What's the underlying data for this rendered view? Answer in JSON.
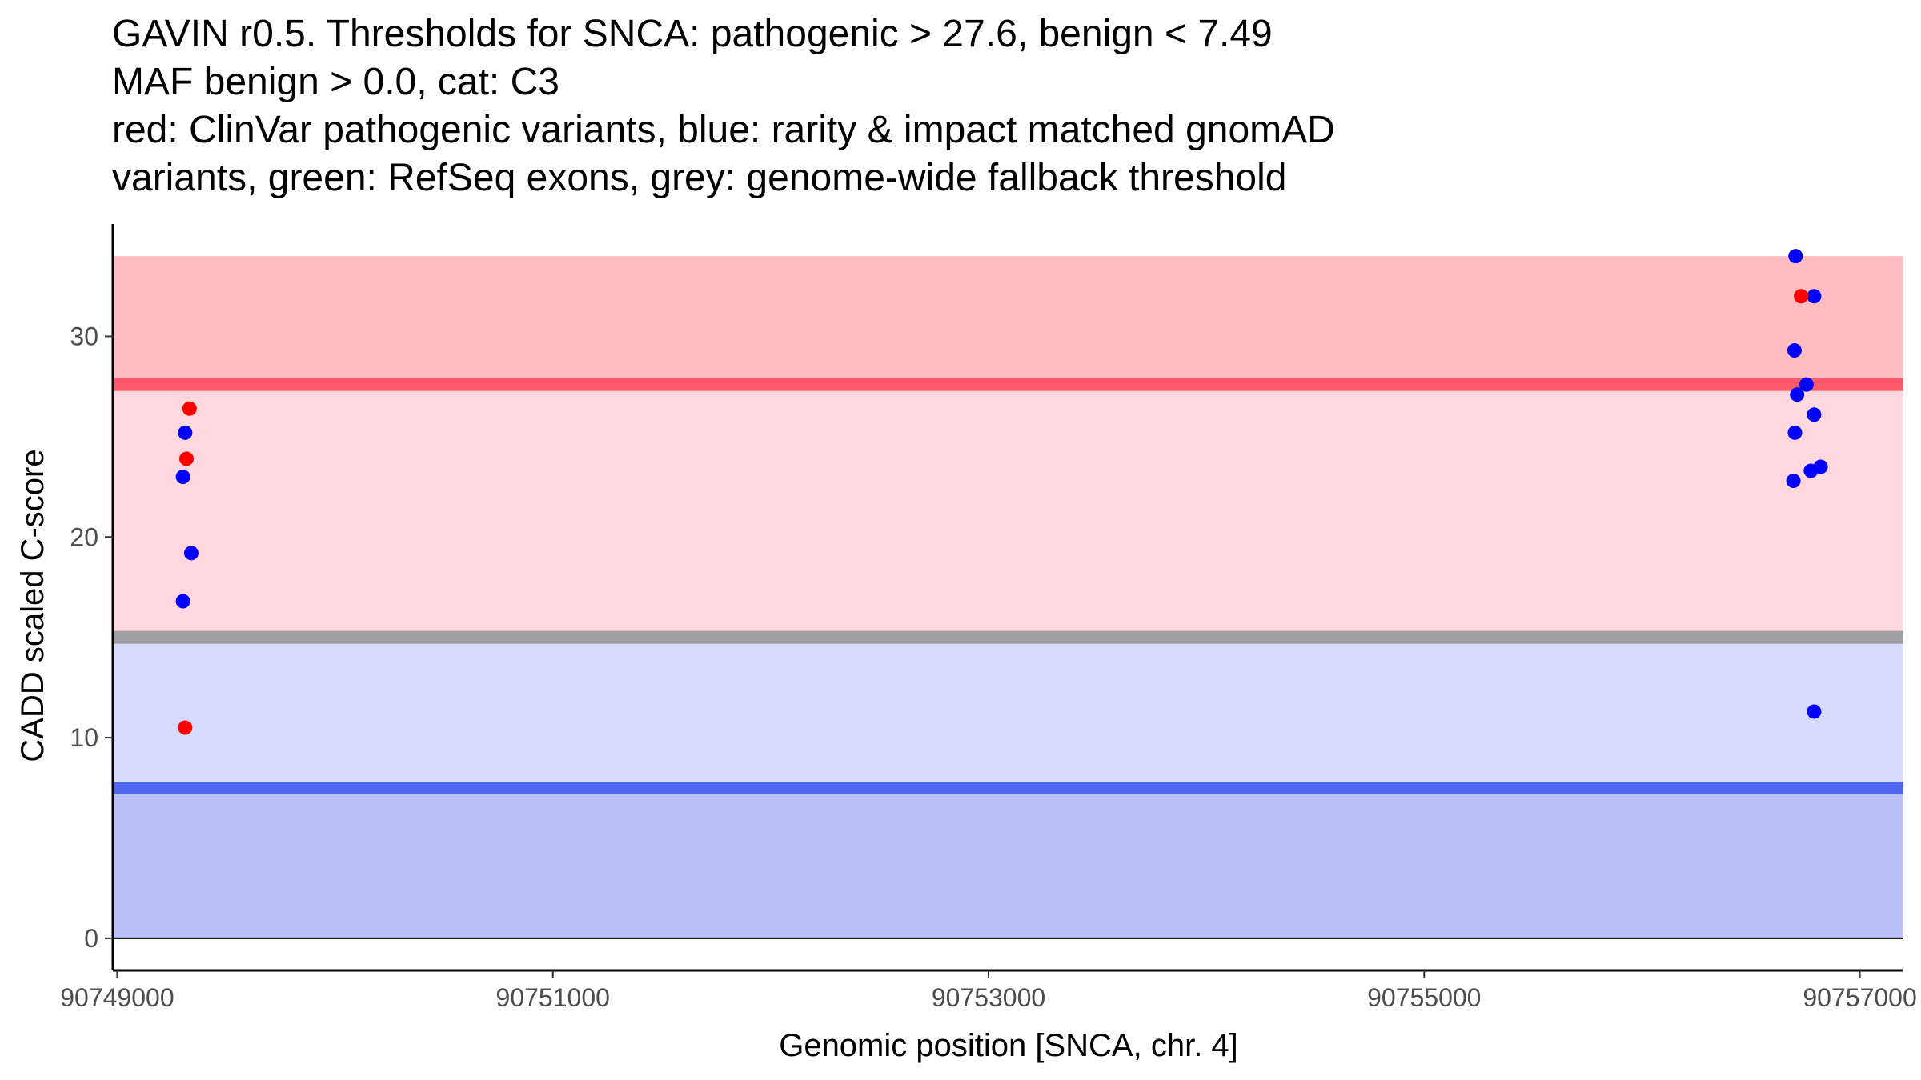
{
  "chart_data": {
    "type": "scatter",
    "title_lines": [
      "GAVIN r0.5. Thresholds for SNCA: pathogenic > 27.6, benign < 7.49",
      "MAF benign > 0.0, cat: C3",
      "red: ClinVar pathogenic variants, blue: rarity & impact matched gnomAD",
      "variants, green: RefSeq exons, grey: genome-wide fallback threshold"
    ],
    "xlabel": "Genomic position [SNCA, chr. 4]",
    "ylabel": "CADD scaled C-score",
    "xlim": [
      90748980,
      90757200
    ],
    "ylim": [
      -1.6,
      35.6
    ],
    "x_ticks": [
      90749000,
      90751000,
      90753000,
      90755000,
      90757000
    ],
    "x_tick_labels": [
      "90749000",
      "90751000",
      "90753000",
      "90755000",
      "90757000"
    ],
    "y_ticks": [
      0,
      10,
      20,
      30
    ],
    "y_tick_labels": [
      "0",
      "10",
      "20",
      "30"
    ],
    "thresholds": {
      "pathogenic": 27.6,
      "benign": 7.49,
      "genome_wide_fallback": 15.0,
      "max_score": 34.0
    },
    "colors": {
      "pathogenic_region": "#ffbcc2",
      "middle_region": "#ffd7dc",
      "lower_middle_region": "#d7daff",
      "benign_region": "#bbc0fa",
      "pathogenic_line": "#fd5b6b",
      "fallback_line": "#9f9ea3",
      "benign_line": "#5167ef",
      "clinvar_point": "#ff0000",
      "gnomad_point": "#0000ff"
    },
    "series": [
      {
        "name": "ClinVar pathogenic variants",
        "color": "red",
        "points": [
          {
            "x": 90749332,
            "y": 26.4
          },
          {
            "x": 90749318,
            "y": 23.9
          },
          {
            "x": 90749312,
            "y": 10.5
          },
          {
            "x": 90756730,
            "y": 32.0
          }
        ]
      },
      {
        "name": "rarity & impact matched gnomAD variants",
        "color": "blue",
        "points": [
          {
            "x": 90749312,
            "y": 25.2
          },
          {
            "x": 90749302,
            "y": 23.0
          },
          {
            "x": 90749340,
            "y": 19.2
          },
          {
            "x": 90749302,
            "y": 16.8
          },
          {
            "x": 90756705,
            "y": 34.0
          },
          {
            "x": 90756790,
            "y": 32.0
          },
          {
            "x": 90756700,
            "y": 29.3
          },
          {
            "x": 90756755,
            "y": 27.6
          },
          {
            "x": 90756712,
            "y": 27.1
          },
          {
            "x": 90756790,
            "y": 26.1
          },
          {
            "x": 90756702,
            "y": 25.2
          },
          {
            "x": 90756820,
            "y": 23.5
          },
          {
            "x": 90756775,
            "y": 23.3
          },
          {
            "x": 90756695,
            "y": 22.8
          },
          {
            "x": 90756790,
            "y": 11.3
          }
        ]
      }
    ]
  }
}
